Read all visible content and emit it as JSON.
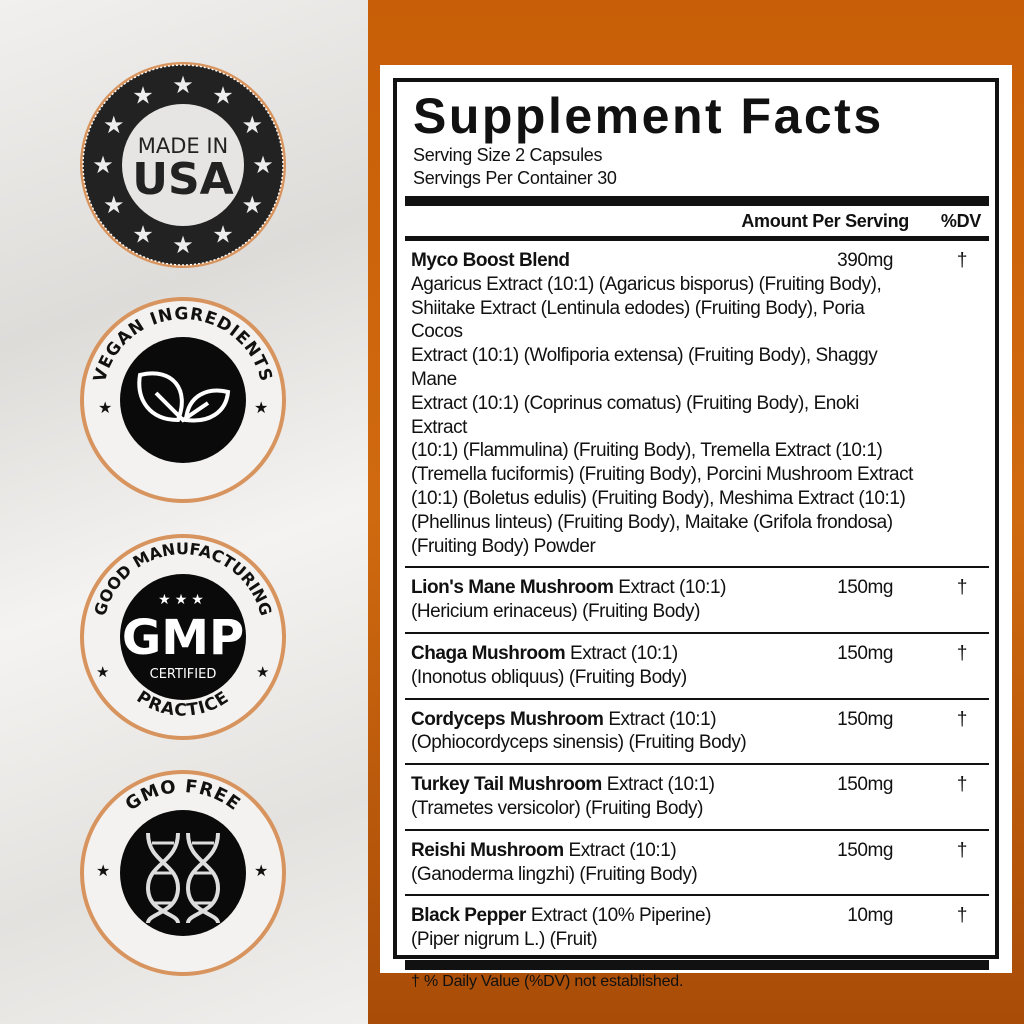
{
  "badges": [
    {
      "name": "made-in-usa",
      "line1": "MADE IN",
      "line2": "USA"
    },
    {
      "name": "vegan-ingredients",
      "arc": "VEGAN INGREDIENTS"
    },
    {
      "name": "gmp",
      "arc_top": "GOOD MANUFACTURING",
      "arc_bottom": "PRACTICE",
      "center": "GMP",
      "sub": "CERTIFIED"
    },
    {
      "name": "gmo-free",
      "arc": "GMO FREE"
    }
  ],
  "facts": {
    "title": "Supplement Facts",
    "serving_size": "Serving Size 2 Capsules",
    "servings_per_container": "Servings Per Container 30",
    "amount_header": "Amount Per Serving",
    "dv_header": "%DV",
    "rows": [
      {
        "bold": "Myco Boost Blend",
        "rest": "",
        "amount": "390mg",
        "dv": "†",
        "blend": "Agaricus Extract (10:1) (Agaricus bisporus) (Fruiting Body),\nShiitake Extract (Lentinula edodes) (Fruiting Body), Poria Cocos\nExtract (10:1) (Wolfiporia extensa) (Fruiting Body), Shaggy Mane\nExtract (10:1) (Coprinus comatus) (Fruiting Body), Enoki Extract\n(10:1) (Flammulina) (Fruiting Body), Tremella Extract (10:1)\n(Tremella fuciformis) (Fruiting Body), Porcini Mushroom Extract\n(10:1) (Boletus edulis) (Fruiting Body), Meshima Extract (10:1)\n(Phellinus linteus) (Fruiting Body), Maitake (Grifola frondosa)\n(Fruiting Body) Powder"
      },
      {
        "bold": "Lion's Mane Mushroom",
        "rest": " Extract (10:1)",
        "amount": "150mg",
        "dv": "†",
        "blend": "(Hericium erinaceus) (Fruiting Body)"
      },
      {
        "bold": "Chaga Mushroom",
        "rest": " Extract (10:1)",
        "amount": "150mg",
        "dv": "†",
        "blend": "(Inonotus obliquus) (Fruiting Body)"
      },
      {
        "bold": "Cordyceps Mushroom",
        "rest": " Extract (10:1)",
        "amount": "150mg",
        "dv": "†",
        "blend": "(Ophiocordyceps sinensis) (Fruiting Body)"
      },
      {
        "bold": "Turkey Tail Mushroom",
        "rest": " Extract (10:1)",
        "amount": "150mg",
        "dv": "†",
        "blend": "(Trametes versicolor) (Fruiting Body)"
      },
      {
        "bold": "Reishi Mushroom",
        "rest": " Extract (10:1)",
        "amount": "150mg",
        "dv": "†",
        "blend": "(Ganoderma lingzhi) (Fruiting Body)"
      },
      {
        "bold": "Black Pepper",
        "rest": " Extract (10% Piperine)",
        "amount": "10mg",
        "dv": "†",
        "blend": "(Piper nigrum L.) (Fruit)"
      }
    ],
    "footnote": "† % Daily Value (%DV) not established."
  },
  "colors": {
    "orange": "#c85f08",
    "badge_ring": "#d8945e"
  }
}
